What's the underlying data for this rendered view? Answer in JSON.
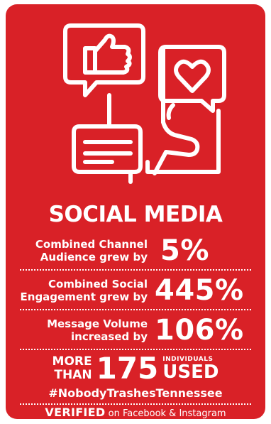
{
  "heading": "SOCIAL MEDIA",
  "stats": [
    {
      "label_line1": "Combined Channel",
      "label_line2": "Audience grew by",
      "value": "5%"
    },
    {
      "label_line1": "Combined Social",
      "label_line2": "Engagement grew by",
      "value": "445%"
    },
    {
      "label_line1": "Message Volume",
      "label_line2": "increased by",
      "value": "106%"
    }
  ],
  "participants": {
    "more": "MORE",
    "than": "THAN",
    "number": "175",
    "individuals": "INDIVIDUALS",
    "used": "USED",
    "hashtag": "#NobodyTrashesTennessee"
  },
  "verified": {
    "badge": "VERIFIED",
    "text": "on Facebook & Instagram"
  },
  "colors": {
    "background": "#d92127",
    "foreground": "#ffffff"
  },
  "icons": [
    "thumbs-up-icon",
    "heart-icon",
    "chat-bubble-icon",
    "hand-holding-phone-icon"
  ]
}
